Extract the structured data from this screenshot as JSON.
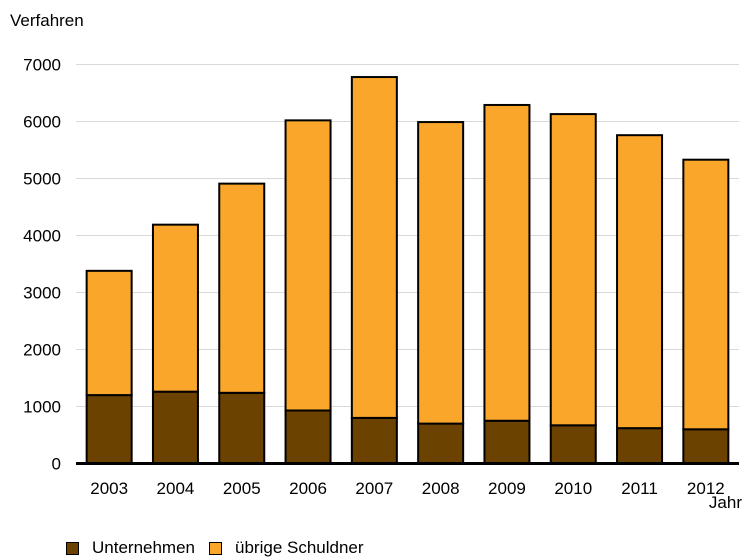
{
  "chart_data": {
    "type": "bar",
    "stacked": true,
    "ylabel": "Verfahren",
    "xlabel": "Jahr",
    "ylim": [
      0,
      7000
    ],
    "yticks": [
      0,
      1000,
      2000,
      3000,
      4000,
      5000,
      6000,
      7000
    ],
    "grid": true,
    "legend_position": "bottom-left",
    "categories": [
      "2003",
      "2004",
      "2005",
      "2006",
      "2007",
      "2008",
      "2009",
      "2010",
      "2011",
      "2012"
    ],
    "series": [
      {
        "name": "Unternehmen",
        "color": "#6b4200",
        "values": [
          1200,
          1260,
          1240,
          930,
          800,
          700,
          750,
          670,
          620,
          600
        ]
      },
      {
        "name": "übrige Schuldner",
        "color": "#faa62b",
        "values": [
          2180,
          2930,
          3670,
          5090,
          5980,
          5290,
          5540,
          5460,
          5140,
          4730
        ]
      }
    ]
  }
}
